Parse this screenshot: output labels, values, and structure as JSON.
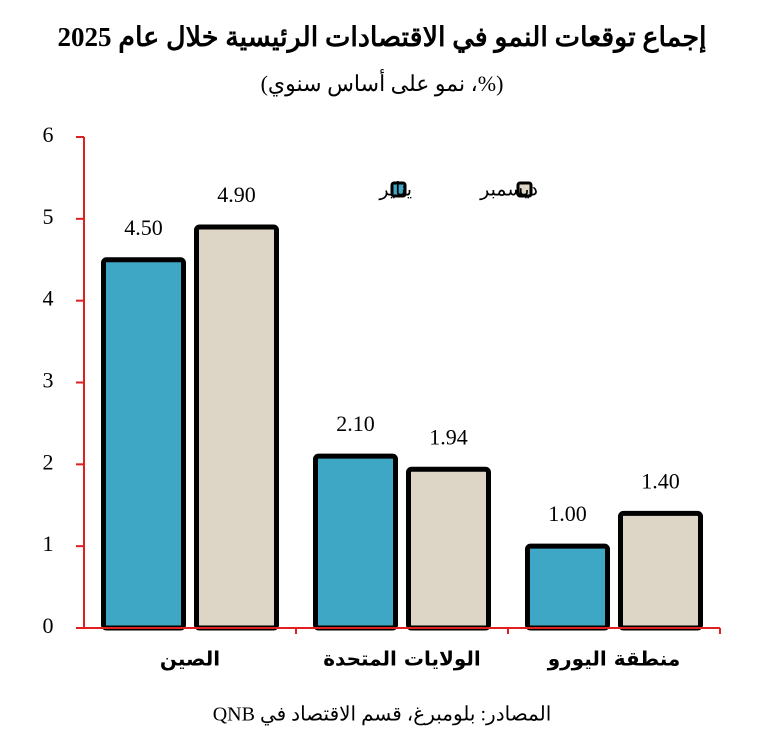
{
  "chart_data": {
    "type": "bar",
    "title": "إجماع توقعات النمو في الاقتصادات الرئيسية خلال عام 2025",
    "subtitle": "(%، نمو على أساس سنوي)",
    "source": "المصادر: بلومبرغ، قسم الاقتصاد في QNB",
    "categories": [
      "الصين",
      "الولايات المتحدة",
      "منطقة اليورو"
    ],
    "series": [
      {
        "name": "يناير",
        "color": "#3fa7c6",
        "values": [
          4.5,
          2.1,
          1.0
        ],
        "value_labels": [
          "4.50",
          "2.10",
          "1.00"
        ]
      },
      {
        "name": "ديسمبر",
        "color": "#ddd5c5",
        "values": [
          4.9,
          1.94,
          1.4
        ],
        "value_labels": [
          "4.90",
          "1.94",
          "1.40"
        ]
      }
    ],
    "ylim": [
      0,
      6
    ],
    "yticks": [
      0,
      1,
      2,
      3,
      4,
      5,
      6
    ],
    "axis_color": "#e02020"
  }
}
